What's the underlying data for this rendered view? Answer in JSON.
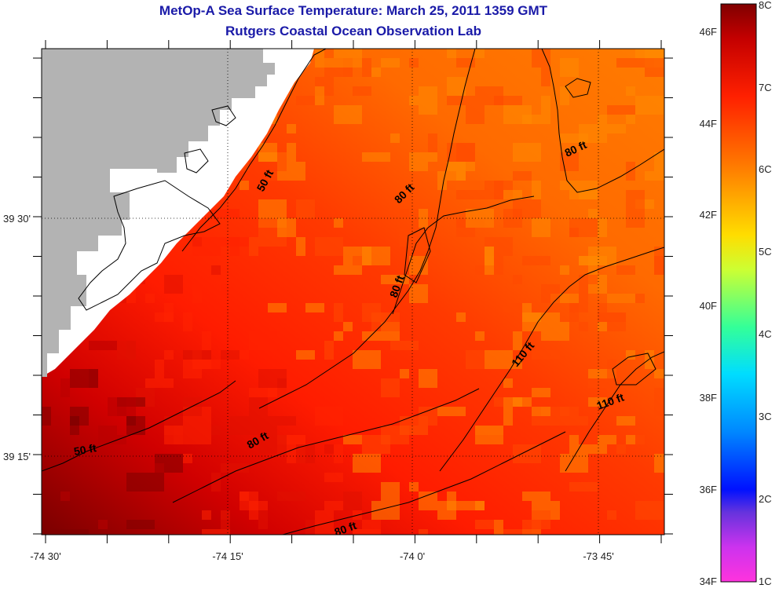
{
  "title": {
    "line1": "MetOp-A Sea Surface Temperature:  March 25, 2011 1359 GMT",
    "line2": "Rutgers Coastal Ocean Observation Lab"
  },
  "map": {
    "longitude_ticks": [
      "-74 30'",
      "-74 15'",
      "-74 0'",
      "-73 45'"
    ],
    "latitude_ticks": [
      "39 30'",
      "39 15'"
    ],
    "colors": {
      "land": "#b3b3b3",
      "cloud_mask": "#ffffff",
      "warm_max": "#800000",
      "warm_mid": "#ff2200",
      "warm_low": "#ff8a00"
    },
    "contour_labels": [
      {
        "text": "50 ft"
      },
      {
        "text": "50 ft"
      },
      {
        "text": "80 ft"
      },
      {
        "text": "80 ft"
      },
      {
        "text": "80 ft"
      },
      {
        "text": "80 ft"
      },
      {
        "text": "80 ft"
      },
      {
        "text": "110 ft"
      },
      {
        "text": "110 ft"
      }
    ]
  },
  "colorbar": {
    "fahrenheit_labels": [
      "46F",
      "44F",
      "42F",
      "40F",
      "38F",
      "36F",
      "34F"
    ],
    "celsius_labels": [
      "8C",
      "7C",
      "6C",
      "5C",
      "4C",
      "3C",
      "2C",
      "1C"
    ]
  }
}
